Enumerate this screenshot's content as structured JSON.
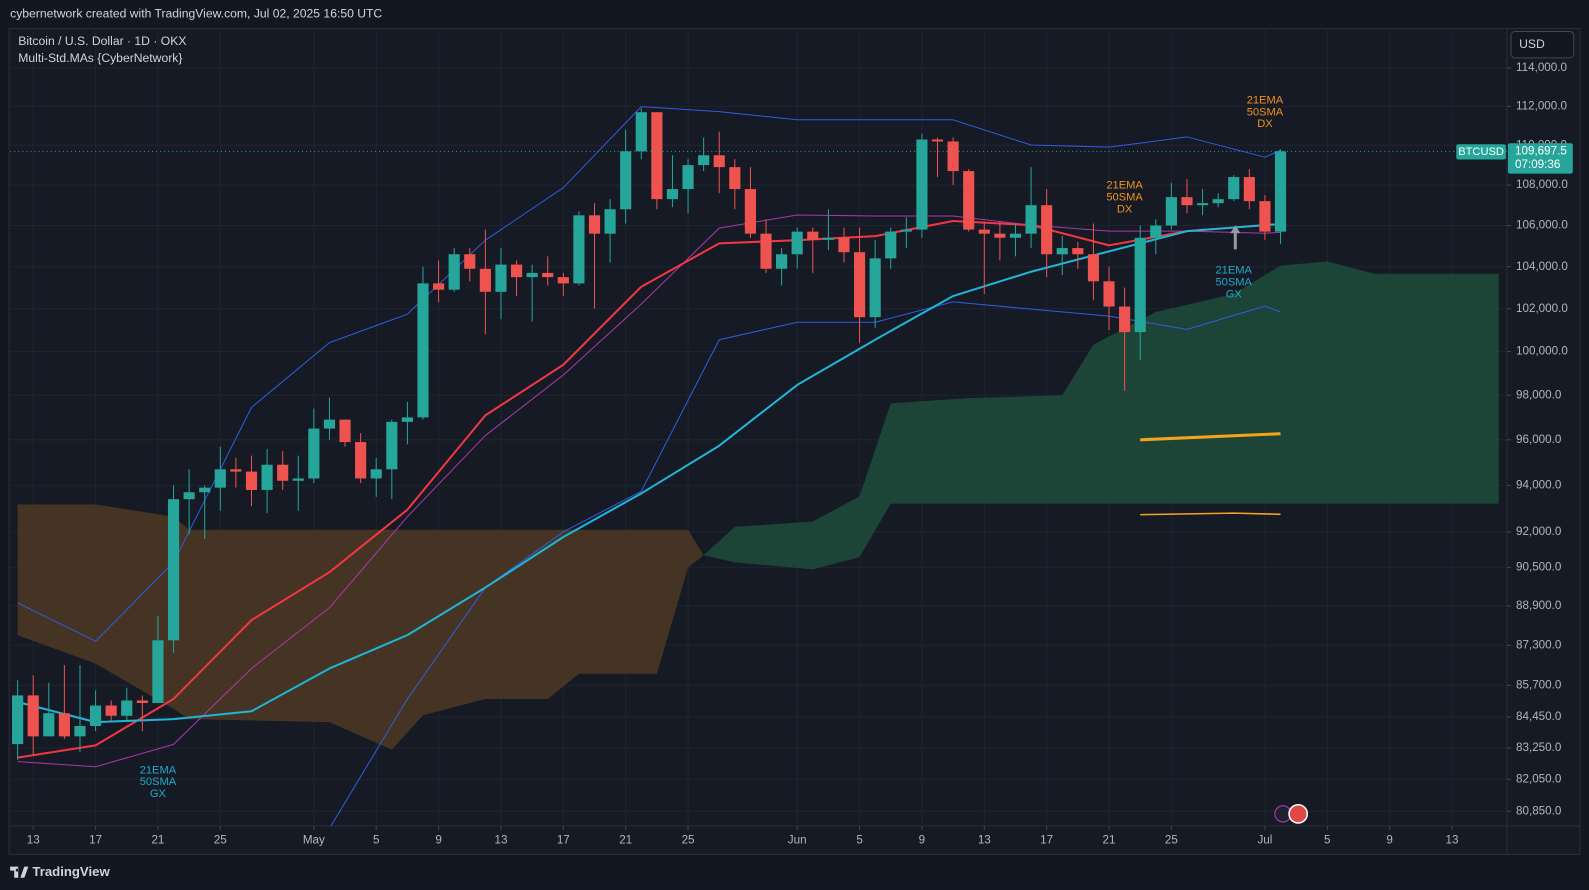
{
  "header": {
    "credit": "cybernetwork created with TradingView.com, Jul 02, 2025 16:50 UTC",
    "brand": "TradingView"
  },
  "chart_data": {
    "type": "candlestick",
    "title": "Bitcoin / U.S. Dollar · 1D · OKX",
    "subtitle": "Multi-Std.MAs {CyberNetwork}",
    "currency": "USD",
    "symbol": "BTCUSD",
    "price_label": {
      "value": 109697.5,
      "label": "109,697.5"
    },
    "countdown": "07:09:36",
    "up_color": "#26a69a",
    "down_color": "#ef5350",
    "log_scale": true,
    "grid": true,
    "x": [
      "04-12",
      "04-13",
      "04-14",
      "04-15",
      "04-16",
      "04-17",
      "04-18",
      "04-19",
      "04-20",
      "04-21",
      "04-22",
      "04-23",
      "04-24",
      "04-25",
      "04-26",
      "04-27",
      "04-28",
      "04-29",
      "04-30",
      "05-01",
      "05-02",
      "05-03",
      "05-04",
      "05-05",
      "05-06",
      "05-07",
      "05-08",
      "05-09",
      "05-10",
      "05-11",
      "05-12",
      "05-13",
      "05-14",
      "05-15",
      "05-16",
      "05-17",
      "05-18",
      "05-19",
      "05-20",
      "05-21",
      "05-22",
      "05-23",
      "05-24",
      "05-25",
      "05-26",
      "05-27",
      "05-28",
      "05-29",
      "05-30",
      "05-31",
      "06-01",
      "06-02",
      "06-03",
      "06-04",
      "06-05",
      "06-06",
      "06-07",
      "06-08",
      "06-09",
      "06-10",
      "06-11",
      "06-12",
      "06-13",
      "06-14",
      "06-15",
      "06-16",
      "06-17",
      "06-18",
      "06-19",
      "06-20",
      "06-21",
      "06-22",
      "06-23",
      "06-24",
      "06-25",
      "06-26",
      "06-27",
      "06-28",
      "06-29",
      "06-30",
      "07-01",
      "07-02"
    ],
    "open": [
      83400,
      85300,
      83700,
      84600,
      83700,
      84100,
      84900,
      84500,
      85100,
      85000,
      87500,
      93400,
      93700,
      93900,
      94700,
      94600,
      93800,
      94900,
      94200,
      94300,
      96500,
      96900,
      95900,
      94300,
      94700,
      96800,
      97000,
      103200,
      102900,
      104600,
      103900,
      102800,
      104100,
      103500,
      103700,
      103500,
      103200,
      106500,
      105600,
      106800,
      109700,
      111700,
      107300,
      107800,
      109000,
      109500,
      108900,
      107800,
      105600,
      103900,
      104600,
      105700,
      105300,
      105400,
      104700,
      101600,
      104400,
      105700,
      105800,
      110300,
      110200,
      108700,
      105800,
      105600,
      105400,
      105600,
      107000,
      104600,
      104900,
      104600,
      103300,
      102100,
      100900,
      105400,
      106000,
      107400,
      107000,
      107100,
      107300,
      108400,
      107200,
      105700
    ],
    "high": [
      85900,
      86100,
      85800,
      86500,
      86500,
      85500,
      85100,
      85600,
      85300,
      88500,
      94000,
      94700,
      94000,
      95700,
      95200,
      95300,
      95600,
      95500,
      95300,
      97400,
      97900,
      96900,
      96300,
      95200,
      96900,
      97700,
      104000,
      104300,
      104900,
      104900,
      105800,
      104900,
      104300,
      104100,
      104500,
      103700,
      106700,
      107100,
      107300,
      110800,
      111900,
      111700,
      109500,
      109300,
      110400,
      110700,
      109300,
      108900,
      106300,
      104900,
      105900,
      105900,
      106800,
      105900,
      105900,
      105300,
      105900,
      106400,
      110600,
      110400,
      110400,
      108800,
      106200,
      106200,
      106100,
      108900,
      107800,
      105500,
      105200,
      106100,
      104000,
      103000,
      106000,
      106300,
      108100,
      108300,
      107800,
      107600,
      108500,
      108800,
      107500,
      109800
    ],
    "low": [
      82800,
      83000,
      83700,
      83600,
      83100,
      83900,
      84300,
      84300,
      83900,
      85000,
      87000,
      91900,
      91700,
      92900,
      93900,
      93100,
      92800,
      93800,
      92900,
      94100,
      96000,
      95700,
      94100,
      93500,
      93400,
      95800,
      96900,
      102300,
      102800,
      103300,
      100800,
      101500,
      102600,
      101400,
      103100,
      102600,
      103100,
      102000,
      104200,
      106100,
      109300,
      106800,
      106900,
      106600,
      108700,
      107600,
      106800,
      105400,
      103700,
      103100,
      103900,
      103700,
      104800,
      104200,
      100400,
      101100,
      103900,
      104900,
      105400,
      108400,
      108000,
      105700,
      102700,
      104300,
      104500,
      104900,
      103500,
      103600,
      103900,
      102400,
      101000,
      98200,
      99600,
      104600,
      105800,
      106600,
      106500,
      106900,
      107200,
      106800,
      105300,
      105100
    ],
    "close": [
      85300,
      83700,
      84600,
      83700,
      84100,
      84900,
      84500,
      85100,
      85000,
      87500,
      93400,
      93700,
      93900,
      94700,
      94600,
      93800,
      94900,
      94200,
      94300,
      96500,
      96900,
      95900,
      94300,
      94700,
      96800,
      97000,
      103200,
      102900,
      104600,
      103900,
      102800,
      104100,
      103500,
      103700,
      103500,
      103200,
      106500,
      105600,
      106800,
      109700,
      111700,
      107300,
      107800,
      109000,
      109500,
      108900,
      107800,
      105600,
      103900,
      104600,
      105700,
      105300,
      105400,
      104700,
      101600,
      104400,
      105700,
      105800,
      110300,
      110200,
      108700,
      105800,
      105600,
      105400,
      105600,
      107000,
      104600,
      104900,
      104600,
      103300,
      102100,
      100900,
      105400,
      106000,
      107400,
      107000,
      107100,
      107300,
      108400,
      107200,
      105700,
      109697.5
    ],
    "xlim": [
      "04-11",
      "07-16"
    ],
    "xticks": [
      {
        "value": "04-13",
        "label": "13"
      },
      {
        "value": "04-17",
        "label": "17"
      },
      {
        "value": "04-21",
        "label": "21"
      },
      {
        "value": "04-25",
        "label": "25"
      },
      {
        "value": "05-01",
        "label": "May"
      },
      {
        "value": "05-05",
        "label": "5"
      },
      {
        "value": "05-09",
        "label": "9"
      },
      {
        "value": "05-13",
        "label": "13"
      },
      {
        "value": "05-17",
        "label": "17"
      },
      {
        "value": "05-21",
        "label": "21"
      },
      {
        "value": "05-25",
        "label": "25"
      },
      {
        "value": "06-01",
        "label": "Jun"
      },
      {
        "value": "06-05",
        "label": "5"
      },
      {
        "value": "06-09",
        "label": "9"
      },
      {
        "value": "06-13",
        "label": "13"
      },
      {
        "value": "06-17",
        "label": "17"
      },
      {
        "value": "06-21",
        "label": "21"
      },
      {
        "value": "06-25",
        "label": "25"
      },
      {
        "value": "07-01",
        "label": "Jul"
      },
      {
        "value": "07-05",
        "label": "5"
      },
      {
        "value": "07-09",
        "label": "9"
      },
      {
        "value": "07-13",
        "label": "13"
      }
    ],
    "ylim": [
      80300,
      116000
    ],
    "yticks": [
      {
        "value": 114000,
        "label": "114,000.0"
      },
      {
        "value": 112000,
        "label": "112,000.0"
      },
      {
        "value": 110000,
        "label": "110,000.0"
      },
      {
        "value": 108000,
        "label": "108,000.0"
      },
      {
        "value": 106000,
        "label": "106,000.0"
      },
      {
        "value": 104000,
        "label": "104,000.0"
      },
      {
        "value": 102000,
        "label": "102,000.0"
      },
      {
        "value": 100000,
        "label": "100,000.0"
      },
      {
        "value": 98000,
        "label": "98,000.0"
      },
      {
        "value": 96000,
        "label": "96,000.0"
      },
      {
        "value": 94000,
        "label": "94,000.0"
      },
      {
        "value": 92000,
        "label": "92,000.0"
      },
      {
        "value": 90500,
        "label": "90,500.0"
      },
      {
        "value": 88900,
        "label": "88,900.0"
      },
      {
        "value": 87300,
        "label": "87,300.0"
      },
      {
        "value": 85700,
        "label": "85,700.0"
      },
      {
        "value": 84450,
        "label": "84,450.0"
      },
      {
        "value": 83250,
        "label": "83,250.0"
      },
      {
        "value": 82050,
        "label": "82,050.0"
      },
      {
        "value": 80850,
        "label": "80,850.0"
      }
    ],
    "cloud": [
      {
        "color": "#4a3723",
        "x": [
          "04-12",
          "04-17",
          "04-22",
          "04-23",
          "05-02",
          "05-06",
          "05-08",
          "05-12",
          "05-16",
          "05-18",
          "05-23",
          "05-25",
          "05-26"
        ],
        "upper": [
          93170,
          93170,
          92650,
          92090,
          92090,
          92090,
          92090,
          92090,
          92090,
          92090,
          92090,
          92090,
          91010
        ],
        "lower": [
          87710,
          86560,
          84770,
          84370,
          84250,
          83190,
          84520,
          85160,
          85160,
          86160,
          86160,
          90500,
          91010
        ]
      },
      {
        "color": "#1d4a3b",
        "x": [
          "05-26",
          "05-28",
          "06-02",
          "06-05",
          "06-07",
          "06-12",
          "06-18",
          "06-20",
          "06-24",
          "06-29",
          "07-02",
          "07-05",
          "07-08",
          "07-16"
        ],
        "upper": [
          91010,
          92210,
          92440,
          93520,
          97630,
          97870,
          98000,
          100320,
          101840,
          102700,
          104050,
          104250,
          103660,
          103660
        ],
        "lower": [
          91010,
          90710,
          90420,
          90930,
          93210,
          93210,
          93210,
          93210,
          93210,
          93210,
          93210,
          93210,
          93210,
          93210
        ]
      }
    ],
    "overlays": [
      {
        "color": "#2f5de0",
        "x": [
          "04-12",
          "04-17",
          "04-22",
          "04-27",
          "05-02",
          "05-07",
          "05-12",
          "05-17",
          "05-22",
          "05-27",
          "06-01",
          "06-06",
          "06-11",
          "06-16",
          "06-21",
          "06-26",
          "07-01",
          "07-02"
        ],
        "values": [
          89030,
          87460,
          90710,
          97450,
          100410,
          101740,
          105280,
          107870,
          111990,
          111730,
          111310,
          111310,
          111310,
          110020,
          109910,
          110430,
          109400,
          109760
        ]
      },
      {
        "color": "#2f5de0",
        "x": [
          "05-02",
          "05-07",
          "05-12",
          "05-17",
          "05-22",
          "05-27",
          "06-01",
          "06-06",
          "06-11",
          "06-16",
          "06-21",
          "06-26",
          "07-01",
          "07-02"
        ],
        "values": [
          80210,
          85160,
          89660,
          92000,
          93740,
          100550,
          101360,
          101360,
          102320,
          101980,
          101650,
          101030,
          102120,
          101840
        ]
      },
      {
        "color": "#a83aa8",
        "x": [
          "04-12",
          "04-17",
          "04-22",
          "04-27",
          "05-02",
          "05-07",
          "05-12",
          "05-17",
          "05-22",
          "05-27",
          "06-01",
          "06-06",
          "06-11",
          "06-16",
          "06-21",
          "06-26",
          "07-01",
          "07-02"
        ],
        "values": [
          82730,
          82530,
          83390,
          86370,
          88830,
          92650,
          96190,
          98920,
          102220,
          105870,
          106520,
          106470,
          106470,
          106020,
          105720,
          105720,
          105620,
          105670
        ]
      },
      {
        "color": "#f23645",
        "x": [
          "04-12",
          "04-17",
          "04-22",
          "04-27",
          "05-02",
          "05-07",
          "05-12",
          "05-17",
          "05-22",
          "05-27",
          "06-01",
          "06-06",
          "06-11",
          "06-16",
          "06-21",
          "06-26",
          "07-01",
          "07-02"
        ],
        "values": [
          82880,
          83350,
          85160,
          88320,
          90300,
          92950,
          97090,
          99390,
          103040,
          105130,
          105280,
          105480,
          106220,
          106020,
          105030,
          105720,
          106020,
          106070
        ]
      },
      {
        "color": "#1fb5d6",
        "x": [
          "04-12",
          "04-17",
          "04-22",
          "04-27",
          "05-02",
          "05-07",
          "05-12",
          "05-17",
          "05-22",
          "05-27",
          "06-01",
          "06-06",
          "06-11",
          "06-16",
          "06-21",
          "06-26",
          "07-01",
          "07-02"
        ],
        "values": [
          85040,
          84250,
          84370,
          84680,
          86370,
          87710,
          89660,
          91780,
          93650,
          95740,
          98470,
          100550,
          102600,
          103760,
          104740,
          105720,
          106020,
          106070
        ]
      },
      {
        "color": "#f5a31a",
        "x": [
          "06-23",
          "07-02"
        ],
        "values": [
          96000,
          96270
        ]
      },
      {
        "color": "#f5a31a",
        "x": [
          "06-23",
          "06-29",
          "07-02"
        ],
        "values": [
          92730,
          92800,
          92750
        ]
      }
    ],
    "annotations": [
      {
        "x": "04-21",
        "color": "#22a9c9",
        "lines": [
          "21EMA",
          "50SMA",
          "GX"
        ]
      },
      {
        "x": "06-22",
        "color": "#f0911a",
        "lines": [
          "21EMA",
          "50SMA",
          "DX"
        ]
      },
      {
        "x": "06-29",
        "color": "#22a9c9",
        "lines": [
          "21EMA",
          "50SMA",
          "GX"
        ]
      },
      {
        "x": "07-01",
        "color": "#f0911a",
        "lines": [
          "21EMA",
          "50SMA",
          "DX"
        ]
      }
    ]
  }
}
